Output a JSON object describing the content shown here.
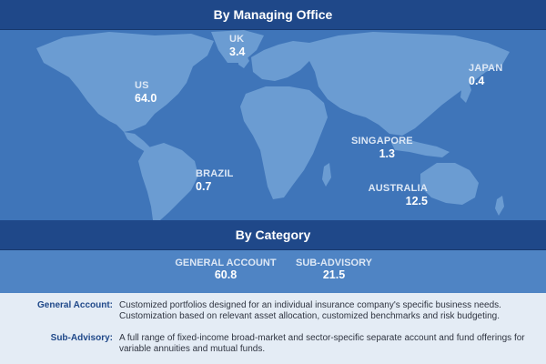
{
  "sections": {
    "office_title": "By Managing Office",
    "category_title": "By Category"
  },
  "offices": {
    "uk": {
      "name": "UK",
      "value": "3.4"
    },
    "us": {
      "name": "US",
      "value": "64.0"
    },
    "japan": {
      "name": "JAPAN",
      "value": "0.4"
    },
    "singapore": {
      "name": "SINGAPORE",
      "value": "1.3"
    },
    "brazil": {
      "name": "BRAZIL",
      "value": "0.7"
    },
    "australia": {
      "name": "AUSTRALIA",
      "value": "12.5"
    }
  },
  "categories": {
    "general": {
      "name": "GENERAL ACCOUNT",
      "value": "60.8"
    },
    "subadvisory": {
      "name": "SUB-ADVISORY",
      "value": "21.5"
    }
  },
  "definitions": {
    "general": {
      "term": "General Account:",
      "line1": "Customized portfolios designed for an individual insurance company's specific business needs.",
      "line2": "Customization based on relevant asset allocation, customized benchmarks and risk budgeting."
    },
    "subadvisory": {
      "term": "Sub-Advisory:",
      "line1": "A full range of fixed-income broad-market and sector-specific separate account and fund offerings for",
      "line2": "variable annuities and mutual funds."
    }
  },
  "colors": {
    "header": "#1f4889",
    "ocean": "#3f75b9",
    "land": "#6b9cd2",
    "category_band": "#4f84c4",
    "background": "#e4ecf5"
  }
}
